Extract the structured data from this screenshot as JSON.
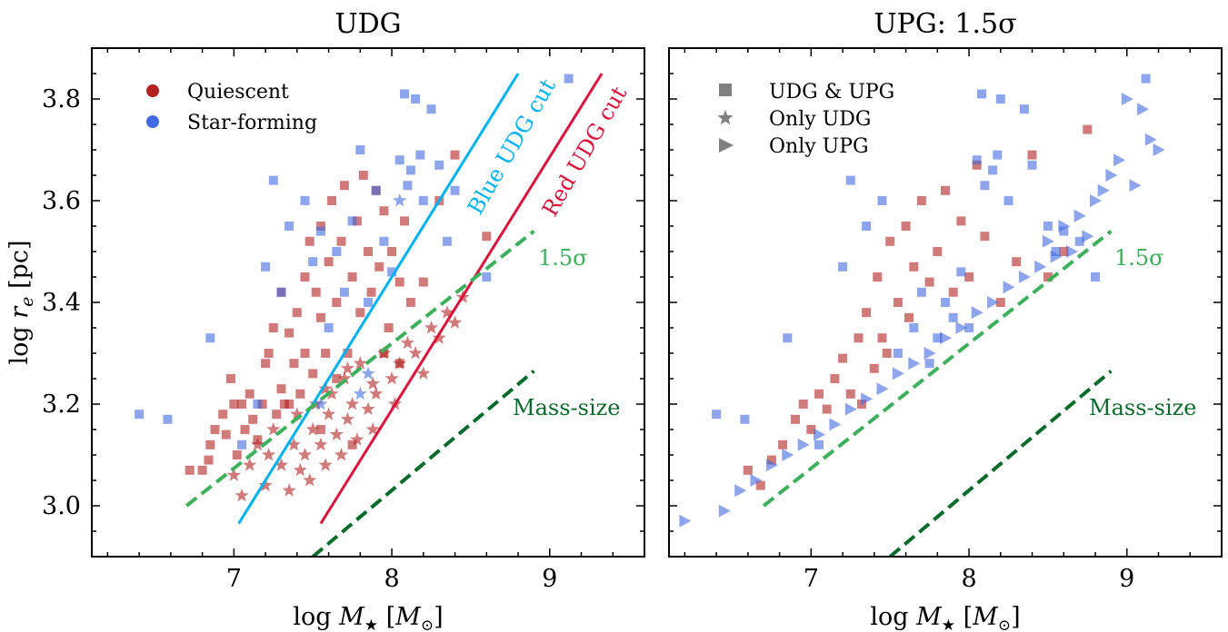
{
  "chart_data": [
    {
      "type": "scatter",
      "title": "UDG",
      "xlabel": "log M★ [M⊙]",
      "ylabel": "log r_e [pc]",
      "xlim": [
        6.1,
        9.6
      ],
      "ylim": [
        2.9,
        3.9
      ],
      "xticks": [
        7,
        8,
        9
      ],
      "xtick_labels": [
        "7",
        "8",
        "9"
      ],
      "yticks": [
        3.0,
        3.2,
        3.4,
        3.6,
        3.8
      ],
      "ytick_labels": [
        "3.0",
        "3.2",
        "3.4",
        "3.6",
        "3.8"
      ],
      "grid": false,
      "legend": {
        "position": "top-left",
        "entries": [
          {
            "label": "Quiescent",
            "marker": "circle",
            "color": "#b22222"
          },
          {
            "label": "Star-forming",
            "marker": "circle",
            "color": "#4169e1"
          }
        ]
      },
      "lines": [
        {
          "label": "Blue UDG cut",
          "color": "#00b3f0",
          "style": "solid",
          "x": [
            7.03,
            8.8
          ],
          "y": [
            2.965,
            3.85
          ]
        },
        {
          "label": "Red UDG cut",
          "color": "#dc143c",
          "style": "solid",
          "x": [
            7.55,
            9.33
          ],
          "y": [
            2.965,
            3.85
          ]
        },
        {
          "label": "1.5σ",
          "color": "#3cb05a",
          "style": "dashed",
          "x": [
            6.7,
            8.9
          ],
          "y": [
            3.0,
            3.54
          ]
        },
        {
          "label": "Mass-size",
          "color": "#0b6b2b",
          "style": "dashed",
          "x": [
            7.5,
            8.9
          ],
          "y": [
            2.9,
            3.265
          ]
        }
      ],
      "series": [
        {
          "name": "Quiescent",
          "marker": "square",
          "color": "#b22222",
          "x": [
            6.72,
            6.8,
            6.84,
            6.85,
            6.88,
            6.93,
            6.95,
            6.98,
            7.0,
            7.02,
            7.05,
            7.07,
            7.1,
            7.12,
            7.15,
            7.18,
            7.2,
            7.22,
            7.25,
            7.27,
            7.3,
            7.3,
            7.32,
            7.35,
            7.38,
            7.4,
            7.42,
            7.45,
            7.45,
            7.48,
            7.5,
            7.52,
            7.55,
            7.55,
            7.58,
            7.6,
            7.62,
            7.65,
            7.68,
            7.7,
            7.72,
            7.75,
            7.78,
            7.8,
            7.82,
            7.85,
            7.87,
            7.9,
            7.92,
            7.95,
            7.98,
            8.0,
            8.05,
            8.08,
            8.12,
            8.2,
            8.3,
            8.4,
            8.6,
            7.35,
            7.55,
            7.65,
            7.75,
            7.95,
            8.05
          ],
          "y": [
            3.07,
            3.07,
            3.09,
            3.12,
            3.15,
            3.18,
            3.14,
            3.25,
            3.2,
            3.1,
            3.2,
            3.15,
            3.22,
            3.17,
            3.13,
            3.2,
            3.28,
            3.3,
            3.35,
            3.18,
            3.23,
            3.42,
            3.2,
            3.34,
            3.28,
            3.38,
            3.22,
            3.45,
            3.3,
            3.52,
            3.26,
            3.42,
            3.37,
            3.55,
            3.3,
            3.48,
            3.6,
            3.4,
            3.52,
            3.63,
            3.3,
            3.45,
            3.56,
            3.38,
            3.65,
            3.5,
            3.42,
            3.62,
            3.47,
            3.58,
            3.35,
            3.5,
            3.44,
            3.56,
            3.4,
            3.44,
            3.6,
            3.69,
            3.53,
            3.2,
            3.15,
            3.25,
            3.12,
            3.3,
            3.28
          ]
        },
        {
          "name": "Star-forming",
          "marker": "square",
          "color": "#4169e1",
          "x": [
            6.4,
            6.58,
            6.85,
            7.05,
            7.15,
            7.2,
            7.25,
            7.3,
            7.35,
            7.45,
            7.5,
            7.55,
            7.6,
            7.65,
            7.7,
            7.75,
            7.8,
            7.85,
            7.9,
            7.95,
            8.0,
            8.05,
            8.1,
            8.12,
            8.15,
            8.2,
            8.25,
            8.3,
            8.35,
            8.4,
            8.6,
            9.12,
            8.08,
            8.18
          ],
          "y": [
            3.18,
            3.17,
            3.33,
            3.12,
            3.2,
            3.47,
            3.64,
            3.42,
            3.55,
            3.6,
            3.48,
            3.54,
            3.35,
            3.5,
            3.42,
            3.56,
            3.7,
            3.4,
            3.62,
            3.52,
            3.46,
            3.68,
            3.63,
            3.66,
            3.8,
            3.6,
            3.78,
            3.67,
            3.52,
            3.62,
            3.45,
            3.84,
            3.81,
            3.69
          ]
        },
        {
          "name": "Quiescent",
          "marker": "star",
          "color": "#b22222",
          "x": [
            7.0,
            7.05,
            7.1,
            7.15,
            7.2,
            7.22,
            7.25,
            7.3,
            7.35,
            7.38,
            7.4,
            7.45,
            7.48,
            7.5,
            7.52,
            7.55,
            7.58,
            7.6,
            7.62,
            7.65,
            7.68,
            7.7,
            7.72,
            7.75,
            7.78,
            7.8,
            7.85,
            7.88,
            7.9,
            7.95,
            8.0,
            8.05,
            8.1,
            8.15,
            8.2,
            8.25,
            8.3,
            8.35,
            8.4,
            8.45,
            7.42,
            7.58,
            7.72,
            7.88,
            8.02
          ],
          "y": [
            3.06,
            3.02,
            3.08,
            3.12,
            3.04,
            3.1,
            3.15,
            3.08,
            3.03,
            3.12,
            3.18,
            3.1,
            3.05,
            3.15,
            3.2,
            3.12,
            3.08,
            3.18,
            3.22,
            3.14,
            3.1,
            3.25,
            3.17,
            3.2,
            3.13,
            3.28,
            3.19,
            3.24,
            3.22,
            3.3,
            3.25,
            3.28,
            3.32,
            3.3,
            3.26,
            3.35,
            3.33,
            3.38,
            3.36,
            3.41,
            3.07,
            3.23,
            3.27,
            3.15,
            3.2
          ]
        },
        {
          "name": "Star-forming",
          "marker": "star",
          "color": "#4169e1",
          "x": [
            7.55,
            7.8,
            7.85,
            8.05
          ],
          "y": [
            3.2,
            3.22,
            3.26,
            3.6
          ]
        }
      ]
    },
    {
      "type": "scatter",
      "title": "UPG: 1.5σ",
      "xlabel": "log M★ [M⊙]",
      "ylabel": "",
      "xlim": [
        6.1,
        9.6
      ],
      "ylim": [
        2.9,
        3.9
      ],
      "xticks": [
        7,
        8,
        9
      ],
      "xtick_labels": [
        "7",
        "8",
        "9"
      ],
      "yticks": [
        3.0,
        3.2,
        3.4,
        3.6,
        3.8
      ],
      "grid": false,
      "legend": {
        "position": "top-left",
        "entries": [
          {
            "label": "UDG & UPG",
            "marker": "square",
            "color": "#808080"
          },
          {
            "label": "Only UDG",
            "marker": "star",
            "color": "#808080"
          },
          {
            "label": "Only UPG",
            "marker": "triangle-right",
            "color": "#808080"
          }
        ]
      },
      "lines": [
        {
          "label": "1.5σ",
          "color": "#3cb05a",
          "style": "dashed",
          "x": [
            6.7,
            8.9
          ],
          "y": [
            3.0,
            3.54
          ]
        },
        {
          "label": "Mass-size",
          "color": "#0b6b2b",
          "style": "dashed",
          "x": [
            7.5,
            8.9
          ],
          "y": [
            2.9,
            3.265
          ]
        }
      ],
      "series": [
        {
          "name": "Quiescent",
          "marker": "square",
          "color": "#b22222",
          "x": [
            6.6,
            6.68,
            6.75,
            6.82,
            6.9,
            6.95,
            7.0,
            7.05,
            7.1,
            7.15,
            7.2,
            7.25,
            7.3,
            7.35,
            7.4,
            7.42,
            7.45,
            7.5,
            7.55,
            7.6,
            7.65,
            7.7,
            7.75,
            7.8,
            7.85,
            7.9,
            7.95,
            8.0,
            8.05,
            8.1,
            8.2,
            8.3,
            8.4,
            8.5,
            8.6,
            8.75,
            7.32,
            7.48,
            7.62
          ],
          "y": [
            3.07,
            3.04,
            3.09,
            3.12,
            3.17,
            3.2,
            3.15,
            3.22,
            3.19,
            3.25,
            3.29,
            3.22,
            3.33,
            3.38,
            3.27,
            3.45,
            3.33,
            3.52,
            3.4,
            3.55,
            3.47,
            3.6,
            3.44,
            3.5,
            3.62,
            3.42,
            3.56,
            3.45,
            3.67,
            3.53,
            3.4,
            3.48,
            3.69,
            3.45,
            3.5,
            3.74,
            3.2,
            3.3,
            3.37
          ]
        },
        {
          "name": "Star-forming",
          "marker": "square",
          "color": "#4169e1",
          "x": [
            6.4,
            6.58,
            6.85,
            7.05,
            7.2,
            7.25,
            7.35,
            7.45,
            7.55,
            7.65,
            7.7,
            7.75,
            7.8,
            7.85,
            7.9,
            7.95,
            8.0,
            8.05,
            8.1,
            8.15,
            8.2,
            8.25,
            8.35,
            8.4,
            8.5,
            8.55,
            8.6,
            8.7,
            8.8,
            9.12,
            8.08,
            8.18
          ],
          "y": [
            3.18,
            3.17,
            3.33,
            3.12,
            3.47,
            3.64,
            3.55,
            3.6,
            3.3,
            3.35,
            3.42,
            3.28,
            3.33,
            3.4,
            3.37,
            3.46,
            3.35,
            3.68,
            3.63,
            3.66,
            3.8,
            3.6,
            3.78,
            3.67,
            3.55,
            3.5,
            3.54,
            3.52,
            3.45,
            3.84,
            3.81,
            3.69
          ]
        },
        {
          "name": "Only UPG",
          "marker": "triangle-right",
          "color": "#4169e1",
          "x": [
            6.2,
            6.45,
            6.55,
            6.65,
            6.75,
            6.85,
            6.95,
            7.05,
            7.15,
            7.25,
            7.35,
            7.45,
            7.55,
            7.65,
            7.75,
            7.85,
            7.95,
            8.05,
            8.15,
            8.25,
            8.35,
            8.45,
            8.5,
            8.55,
            8.6,
            8.65,
            8.7,
            8.75,
            8.8,
            8.85,
            8.9,
            8.95,
            9.0,
            9.05,
            9.1,
            9.15,
            9.2
          ],
          "y": [
            2.97,
            2.99,
            3.03,
            3.05,
            3.08,
            3.1,
            3.12,
            3.14,
            3.16,
            3.19,
            3.21,
            3.23,
            3.26,
            3.28,
            3.3,
            3.33,
            3.35,
            3.38,
            3.4,
            3.43,
            3.45,
            3.47,
            3.52,
            3.49,
            3.55,
            3.5,
            3.57,
            3.53,
            3.6,
            3.62,
            3.65,
            3.68,
            3.8,
            3.63,
            3.78,
            3.72,
            3.7
          ]
        }
      ]
    }
  ]
}
